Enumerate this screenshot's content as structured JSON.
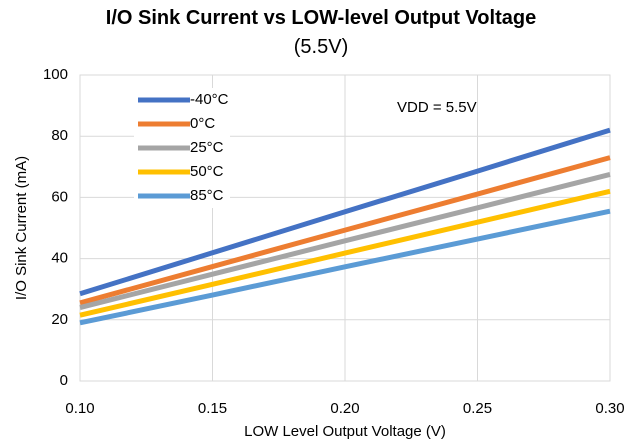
{
  "chart_data": {
    "type": "line",
    "title": "I/O Sink Current vs LOW-level Output Voltage",
    "subtitle": "(5.5V)",
    "annotation": "VDD = 5.5V",
    "x_label": "LOW Level Output Voltage (V)",
    "y_label": "I/O Sink Current (mA)",
    "x": [
      0.1,
      0.15,
      0.2,
      0.25,
      0.3
    ],
    "series": [
      {
        "name": "-40°C",
        "color": "#4472c4",
        "values": [
          28.5,
          41.9,
          55.3,
          68.6,
          82
        ]
      },
      {
        "name": "0°C",
        "color": "#ed7d31",
        "values": [
          25.5,
          37.4,
          49.3,
          61.1,
          73
        ]
      },
      {
        "name": "25°C",
        "color": "#a5a5a5",
        "values": [
          24,
          34.9,
          45.8,
          56.6,
          67.5
        ]
      },
      {
        "name": "50°C",
        "color": "#ffc000",
        "values": [
          21.5,
          31.6,
          41.8,
          51.9,
          62
        ]
      },
      {
        "name": "85°C",
        "color": "#5b9bd5",
        "values": [
          19,
          28.1,
          37.3,
          46.4,
          55.5
        ]
      }
    ],
    "xlim": [
      0.1,
      0.3
    ],
    "xticks": [
      {
        "value": 0.1,
        "label": "0.10"
      },
      {
        "value": 0.15,
        "label": "0.15"
      },
      {
        "value": 0.2,
        "label": "0.20"
      },
      {
        "value": 0.25,
        "label": "0.25"
      },
      {
        "value": 0.3,
        "label": "0.30"
      }
    ],
    "ylim": [
      0,
      100
    ],
    "yticks": [
      0,
      20,
      40,
      60,
      80,
      100
    ],
    "grid": true,
    "legend": "top-left"
  }
}
